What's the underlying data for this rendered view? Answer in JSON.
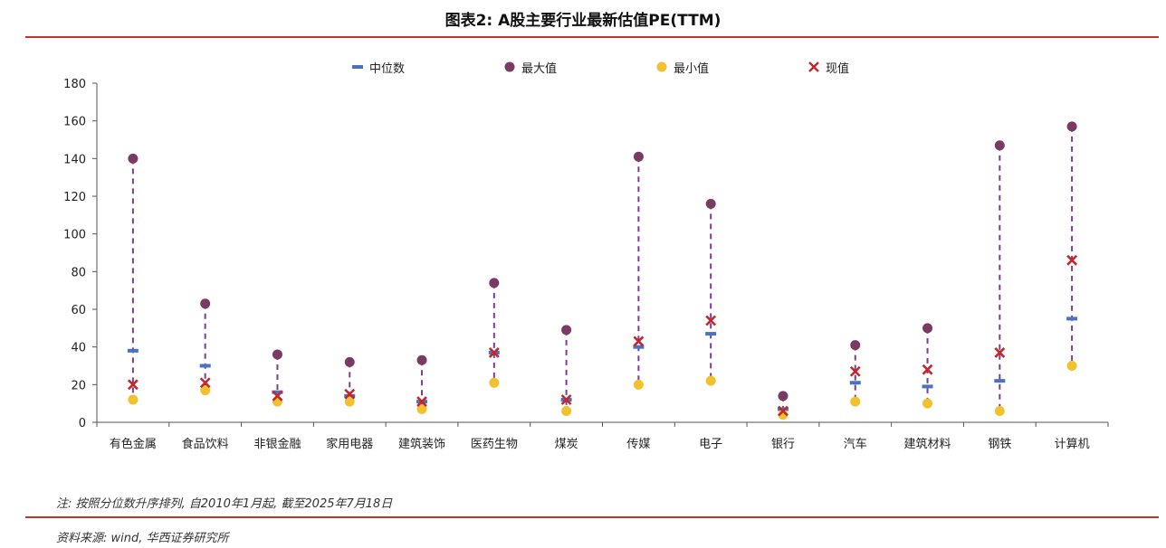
{
  "title": "图表2: A股主要行业最新估值PE(TTM)",
  "legend": [
    {
      "label": "中位数",
      "symbol": "dash",
      "color": "#4a72c4"
    },
    {
      "label": "最大值",
      "symbol": "circle",
      "color": "#7b3a64"
    },
    {
      "label": "最小值",
      "symbol": "circle",
      "color": "#f2c12e"
    },
    {
      "label": "现值",
      "symbol": "cross",
      "color": "#c3272e"
    }
  ],
  "chart_data": {
    "type": "scatter",
    "categories": [
      "有色金属",
      "食品饮料",
      "非银金融",
      "家用电器",
      "建筑装饰",
      "医药生物",
      "煤炭",
      "传媒",
      "电子",
      "银行",
      "汽车",
      "建筑材料",
      "钢铁",
      "计算机"
    ],
    "series": [
      {
        "name": "中位数",
        "values": [
          38,
          30,
          16,
          14,
          11,
          37,
          12,
          40,
          47,
          7,
          21,
          19,
          22,
          55
        ]
      },
      {
        "name": "最大值",
        "values": [
          140,
          63,
          36,
          32,
          33,
          74,
          49,
          141,
          116,
          14,
          41,
          50,
          147,
          157
        ]
      },
      {
        "name": "最小值",
        "values": [
          12,
          17,
          11,
          11,
          7,
          21,
          6,
          20,
          22,
          4,
          11,
          10,
          6,
          30
        ]
      },
      {
        "name": "现值",
        "values": [
          20,
          21,
          14,
          15,
          11,
          37,
          12,
          43,
          54,
          6,
          27,
          28,
          37,
          86
        ]
      }
    ],
    "ylim": [
      0,
      180
    ],
    "yticks": [
      "0",
      "20",
      "40",
      "60",
      "80",
      "100",
      "120",
      "140",
      "160",
      "180"
    ],
    "grid": false,
    "legend_position": "top"
  },
  "colors": {
    "range_line": "#7a3f8f",
    "rule": "#c0362c",
    "median": "#4a72c4",
    "max": "#7b3a64",
    "min": "#f2c12e",
    "current": "#c3272e"
  },
  "note": "注: 按照分位数升序排列, 自2010年1月起, 截至2025年7月18日",
  "source": "资料来源: wind, 华西证券研究所"
}
